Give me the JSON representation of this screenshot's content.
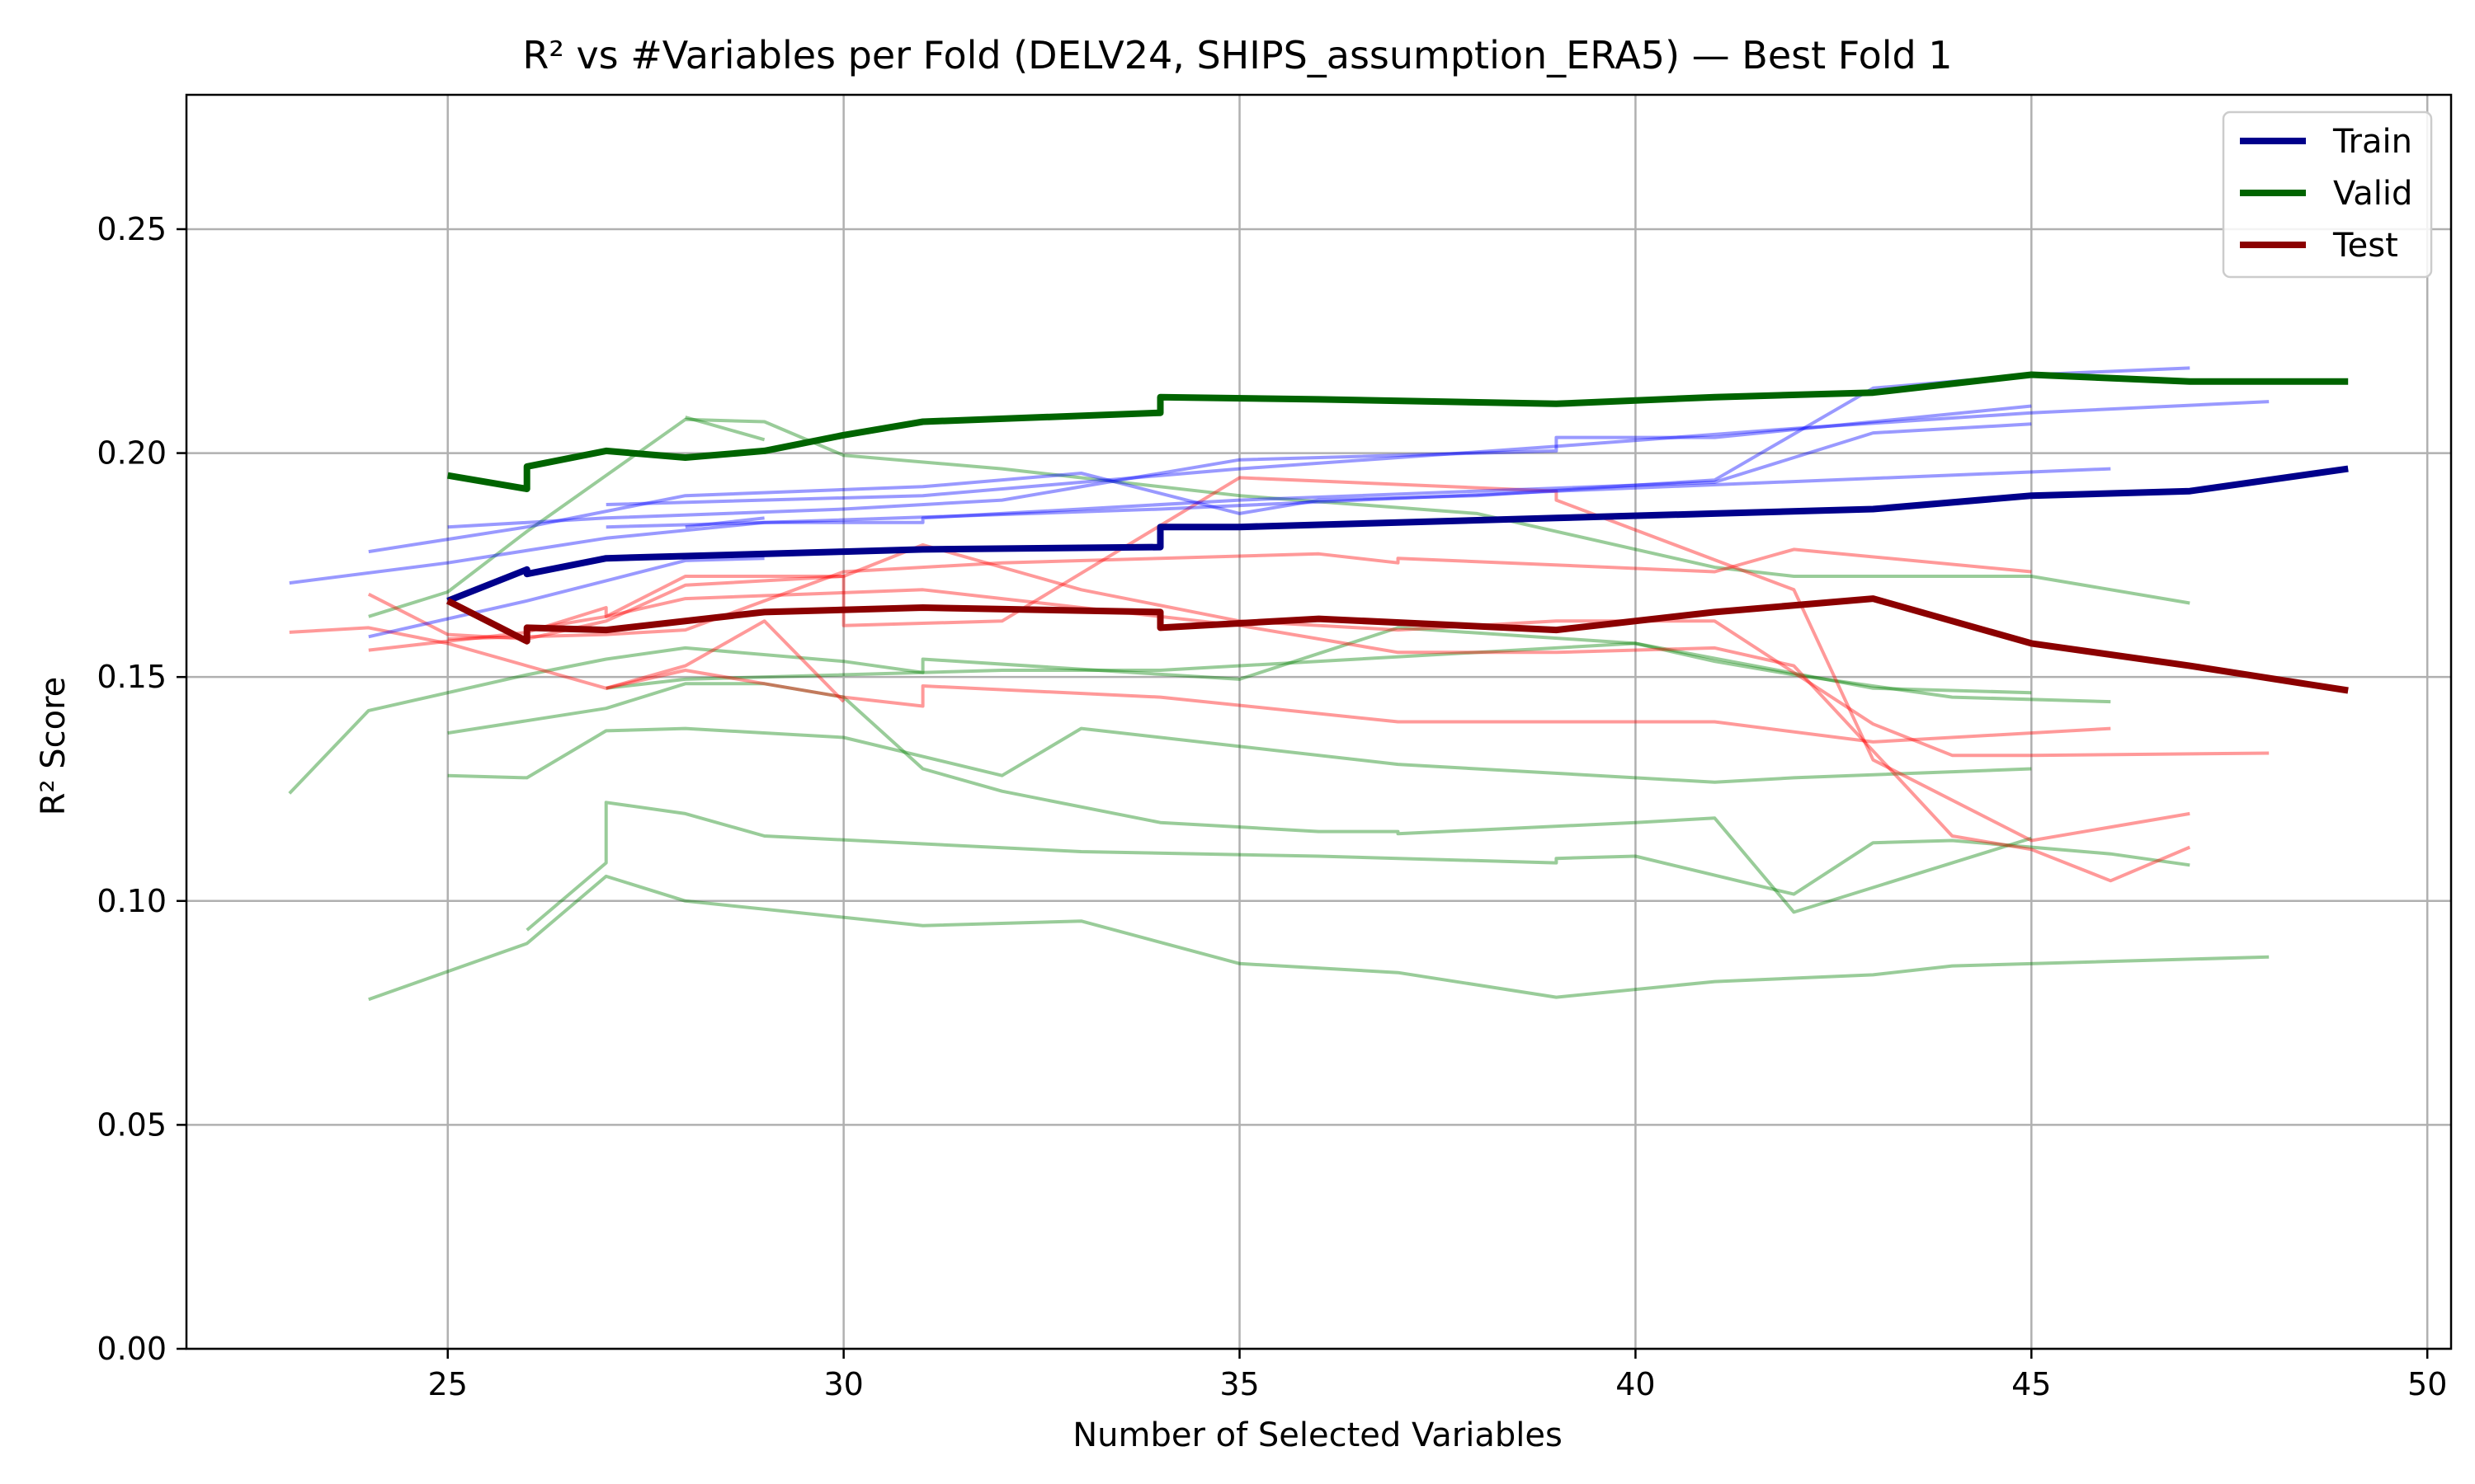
{
  "chart_data": {
    "type": "line",
    "title": "R² vs #Variables per Fold (DELV24, SHIPS_assumption_ERA5) — Best Fold 1",
    "xlabel": "Number of Selected Variables",
    "ylabel": "R² Score",
    "xlim": [
      21.7,
      50.3
    ],
    "ylim": [
      0,
      0.28
    ],
    "xticks": [
      25,
      30,
      35,
      40,
      45,
      50
    ],
    "yticks": [
      0.0,
      0.05,
      0.1,
      0.15,
      0.2,
      0.25
    ],
    "xtick_labels": [
      "25",
      "30",
      "35",
      "40",
      "45",
      "50"
    ],
    "ytick_labels": [
      "0.00",
      "0.05",
      "0.10",
      "0.15",
      "0.20",
      "0.25"
    ],
    "grid": true,
    "legend_position": "top-right",
    "legend": [
      {
        "label": "Train",
        "color": "#00008b"
      },
      {
        "label": "Valid",
        "color": "#006400"
      },
      {
        "label": "Test",
        "color": "#8b0000"
      }
    ],
    "colors": {
      "train": "#00008b",
      "valid": "#006400",
      "test": "#8b0000",
      "train_faint": "#0000ff",
      "valid_faint": "#008000",
      "test_faint": "#ff0000"
    },
    "best_fold": {
      "train": [
        [
          25,
          0.167
        ],
        [
          26,
          0.174
        ],
        [
          26,
          0.173
        ],
        [
          27,
          0.1765
        ],
        [
          28,
          0.177
        ],
        [
          30,
          0.178
        ],
        [
          31,
          0.1785
        ],
        [
          34,
          0.179
        ],
        [
          34,
          0.1835
        ],
        [
          35,
          0.1835
        ],
        [
          39,
          0.1855
        ],
        [
          41,
          0.1865
        ],
        [
          43,
          0.1875
        ],
        [
          45,
          0.1905
        ],
        [
          47,
          0.1915
        ],
        [
          49,
          0.1965
        ]
      ],
      "valid": [
        [
          25,
          0.195
        ],
        [
          26,
          0.192
        ],
        [
          26,
          0.197
        ],
        [
          27,
          0.2005
        ],
        [
          28,
          0.199
        ],
        [
          29,
          0.2005
        ],
        [
          30,
          0.204
        ],
        [
          31,
          0.207
        ],
        [
          34,
          0.209
        ],
        [
          34,
          0.2125
        ],
        [
          36,
          0.212
        ],
        [
          39,
          0.211
        ],
        [
          41,
          0.2125
        ],
        [
          43,
          0.2135
        ],
        [
          45,
          0.2175
        ],
        [
          47,
          0.216
        ],
        [
          49,
          0.216
        ]
      ],
      "test": [
        [
          25,
          0.167
        ],
        [
          26,
          0.158
        ],
        [
          26,
          0.161
        ],
        [
          27,
          0.1605
        ],
        [
          29,
          0.1645
        ],
        [
          31,
          0.1655
        ],
        [
          34,
          0.1645
        ],
        [
          34,
          0.161
        ],
        [
          36,
          0.163
        ],
        [
          39,
          0.1605
        ],
        [
          41,
          0.1645
        ],
        [
          43,
          0.1675
        ],
        [
          45,
          0.1575
        ],
        [
          47,
          0.1525
        ],
        [
          49,
          0.147
        ]
      ]
    },
    "other_folds": {
      "train": [
        [
          [
            23,
            0.171
          ],
          [
            25,
            0.1755
          ],
          [
            27,
            0.181
          ],
          [
            29,
            0.1845
          ],
          [
            34,
            0.1875
          ],
          [
            39,
            0.1915
          ],
          [
            46,
            0.1965
          ]
        ],
        [
          [
            24,
            0.159
          ],
          [
            26,
            0.167
          ],
          [
            27,
            0.1715
          ],
          [
            28,
            0.176
          ],
          [
            29,
            0.1765
          ]
        ],
        [
          [
            24,
            0.178
          ],
          [
            26,
            0.1835
          ],
          [
            28,
            0.1905
          ],
          [
            31,
            0.1925
          ],
          [
            33,
            0.1955
          ],
          [
            35,
            0.1865
          ],
          [
            36,
            0.1895
          ],
          [
            38,
            0.1905
          ],
          [
            41,
            0.194
          ],
          [
            43,
            0.2145
          ],
          [
            45,
            0.2175
          ],
          [
            47,
            0.219
          ]
        ],
        [
          [
            25,
            0.1835
          ],
          [
            27,
            0.1855
          ],
          [
            30,
            0.1875
          ],
          [
            32,
            0.1895
          ],
          [
            35,
            0.1985
          ],
          [
            39,
            0.2005
          ],
          [
            39,
            0.2035
          ],
          [
            41,
            0.2035
          ],
          [
            45,
            0.2105
          ]
        ],
        [
          [
            27,
            0.1885
          ],
          [
            31,
            0.1905
          ],
          [
            35,
            0.1965
          ],
          [
            39,
            0.2015
          ],
          [
            42,
            0.2055
          ],
          [
            45,
            0.209
          ],
          [
            48,
            0.2115
          ]
        ],
        [
          [
            27,
            0.1835
          ],
          [
            29,
            0.1845
          ],
          [
            31,
            0.1845
          ],
          [
            31,
            0.1855
          ],
          [
            35,
            0.1895
          ],
          [
            38,
            0.1915
          ],
          [
            41,
            0.1935
          ],
          [
            43,
            0.2045
          ],
          [
            45,
            0.2065
          ]
        ],
        [
          [
            28,
            0.1835
          ],
          [
            29,
            0.1855
          ]
        ]
      ],
      "valid": [
        [
          [
            23,
            0.124
          ],
          [
            24,
            0.1425
          ],
          [
            26,
            0.1505
          ],
          [
            27,
            0.154
          ],
          [
            28,
            0.1565
          ],
          [
            30,
            0.1535
          ],
          [
            31,
            0.151
          ],
          [
            31,
            0.154
          ],
          [
            35,
            0.1495
          ],
          [
            37,
            0.161
          ],
          [
            40,
            0.1575
          ],
          [
            43,
            0.1475
          ],
          [
            45,
            0.1465
          ]
        ],
        [
          [
            24,
            0.1635
          ],
          [
            25,
            0.169
          ],
          [
            26,
            0.1825
          ],
          [
            28,
            0.2075
          ],
          [
            29,
            0.207
          ],
          [
            30,
            0.1995
          ],
          [
            32,
            0.1965
          ],
          [
            35,
            0.1905
          ],
          [
            38,
            0.1865
          ],
          [
            41,
            0.1745
          ],
          [
            42,
            0.1725
          ],
          [
            45,
            0.1725
          ],
          [
            47,
            0.1665
          ]
        ],
        [
          [
            25,
            0.1375
          ],
          [
            27,
            0.143
          ],
          [
            28,
            0.1485
          ],
          [
            29,
            0.1485
          ],
          [
            30,
            0.1455
          ],
          [
            31,
            0.1295
          ],
          [
            32,
            0.1245
          ],
          [
            34,
            0.1175
          ],
          [
            36,
            0.1155
          ],
          [
            37,
            0.1155
          ],
          [
            37,
            0.115
          ],
          [
            40,
            0.1175
          ],
          [
            41,
            0.1185
          ],
          [
            42,
            0.0975
          ],
          [
            43,
            0.103
          ],
          [
            45,
            0.114
          ]
        ],
        [
          [
            25,
            0.128
          ],
          [
            26,
            0.1275
          ],
          [
            27,
            0.138
          ],
          [
            28,
            0.1385
          ],
          [
            30,
            0.1365
          ],
          [
            32,
            0.128
          ],
          [
            33,
            0.1385
          ],
          [
            37,
            0.1305
          ],
          [
            41,
            0.1265
          ],
          [
            42,
            0.1275
          ],
          [
            45,
            0.1295
          ]
        ],
        [
          [
            24,
            0.078
          ],
          [
            26,
            0.0905
          ],
          [
            27,
            0.1055
          ],
          [
            28,
            0.1
          ],
          [
            31,
            0.0945
          ],
          [
            33,
            0.0955
          ],
          [
            35,
            0.086
          ],
          [
            37,
            0.084
          ],
          [
            39,
            0.0785
          ],
          [
            41,
            0.082
          ],
          [
            43,
            0.0835
          ],
          [
            44,
            0.0855
          ],
          [
            48,
            0.0875
          ]
        ],
        [
          [
            26,
            0.0935
          ],
          [
            27,
            0.1085
          ],
          [
            27,
            0.122
          ],
          [
            28,
            0.1195
          ],
          [
            29,
            0.1145
          ],
          [
            33,
            0.111
          ],
          [
            36,
            0.11
          ],
          [
            39,
            0.1085
          ],
          [
            39,
            0.1095
          ],
          [
            40,
            0.11
          ],
          [
            42,
            0.1015
          ],
          [
            43,
            0.113
          ],
          [
            44,
            0.1135
          ],
          [
            46,
            0.1105
          ],
          [
            47,
            0.108
          ]
        ],
        [
          [
            27,
            0.1475
          ],
          [
            28,
            0.1495
          ],
          [
            32,
            0.1515
          ],
          [
            34,
            0.1515
          ],
          [
            40,
            0.1575
          ],
          [
            41,
            0.1535
          ],
          [
            42,
            0.1505
          ],
          [
            44,
            0.1455
          ],
          [
            46,
            0.1445
          ]
        ],
        [
          [
            28,
            0.208
          ],
          [
            29,
            0.203
          ]
        ]
      ],
      "test": [
        [
          [
            23,
            0.16
          ],
          [
            24,
            0.161
          ],
          [
            25,
            0.1575
          ],
          [
            27,
            0.1475
          ],
          [
            28,
            0.1515
          ],
          [
            30,
            0.1455
          ],
          [
            31,
            0.1435
          ],
          [
            31,
            0.148
          ],
          [
            34,
            0.1455
          ],
          [
            37,
            0.14
          ],
          [
            41,
            0.14
          ],
          [
            43,
            0.1355
          ],
          [
            46,
            0.1385
          ]
        ],
        [
          [
            24,
            0.156
          ],
          [
            26,
            0.16
          ],
          [
            27,
            0.1655
          ],
          [
            27,
            0.1635
          ],
          [
            28,
            0.1675
          ],
          [
            31,
            0.1695
          ],
          [
            32,
            0.1675
          ],
          [
            35,
            0.1615
          ],
          [
            37,
            0.1555
          ],
          [
            39,
            0.1555
          ],
          [
            41,
            0.1565
          ],
          [
            42,
            0.1525
          ],
          [
            43,
            0.1335
          ],
          [
            44,
            0.1145
          ],
          [
            45,
            0.1115
          ],
          [
            46,
            0.1045
          ],
          [
            47,
            0.112
          ]
        ],
        [
          [
            24,
            0.1685
          ],
          [
            25,
            0.1595
          ],
          [
            26,
            0.1585
          ],
          [
            27,
            0.1625
          ],
          [
            28,
            0.1705
          ],
          [
            30,
            0.1725
          ],
          [
            31,
            0.1795
          ],
          [
            33,
            0.1695
          ],
          [
            35,
            0.1625
          ],
          [
            37,
            0.1605
          ],
          [
            39,
            0.1625
          ],
          [
            41,
            0.1625
          ],
          [
            43,
            0.1395
          ],
          [
            44,
            0.1325
          ],
          [
            45,
            0.1325
          ],
          [
            48,
            0.133
          ]
        ],
        [
          [
            25,
            0.1585
          ],
          [
            27,
            0.1595
          ],
          [
            28,
            0.1605
          ],
          [
            30,
            0.1735
          ],
          [
            32,
            0.1755
          ],
          [
            34,
            0.1765
          ],
          [
            36,
            0.1775
          ],
          [
            37,
            0.1755
          ],
          [
            37,
            0.1765
          ],
          [
            41,
            0.1735
          ],
          [
            42,
            0.1785
          ],
          [
            45,
            0.1735
          ]
        ],
        [
          [
            26,
            0.1605
          ],
          [
            27,
            0.1635
          ],
          [
            28,
            0.1725
          ],
          [
            30,
            0.1725
          ],
          [
            30,
            0.1615
          ],
          [
            32,
            0.1625
          ],
          [
            35,
            0.1945
          ],
          [
            39,
            0.1915
          ],
          [
            39,
            0.1895
          ],
          [
            42,
            0.1695
          ],
          [
            43,
            0.1315
          ],
          [
            45,
            0.1135
          ],
          [
            47,
            0.1195
          ]
        ],
        [
          [
            27,
            0.1475
          ],
          [
            28,
            0.1525
          ],
          [
            29,
            0.1625
          ],
          [
            30,
            0.1445
          ]
        ]
      ]
    }
  }
}
